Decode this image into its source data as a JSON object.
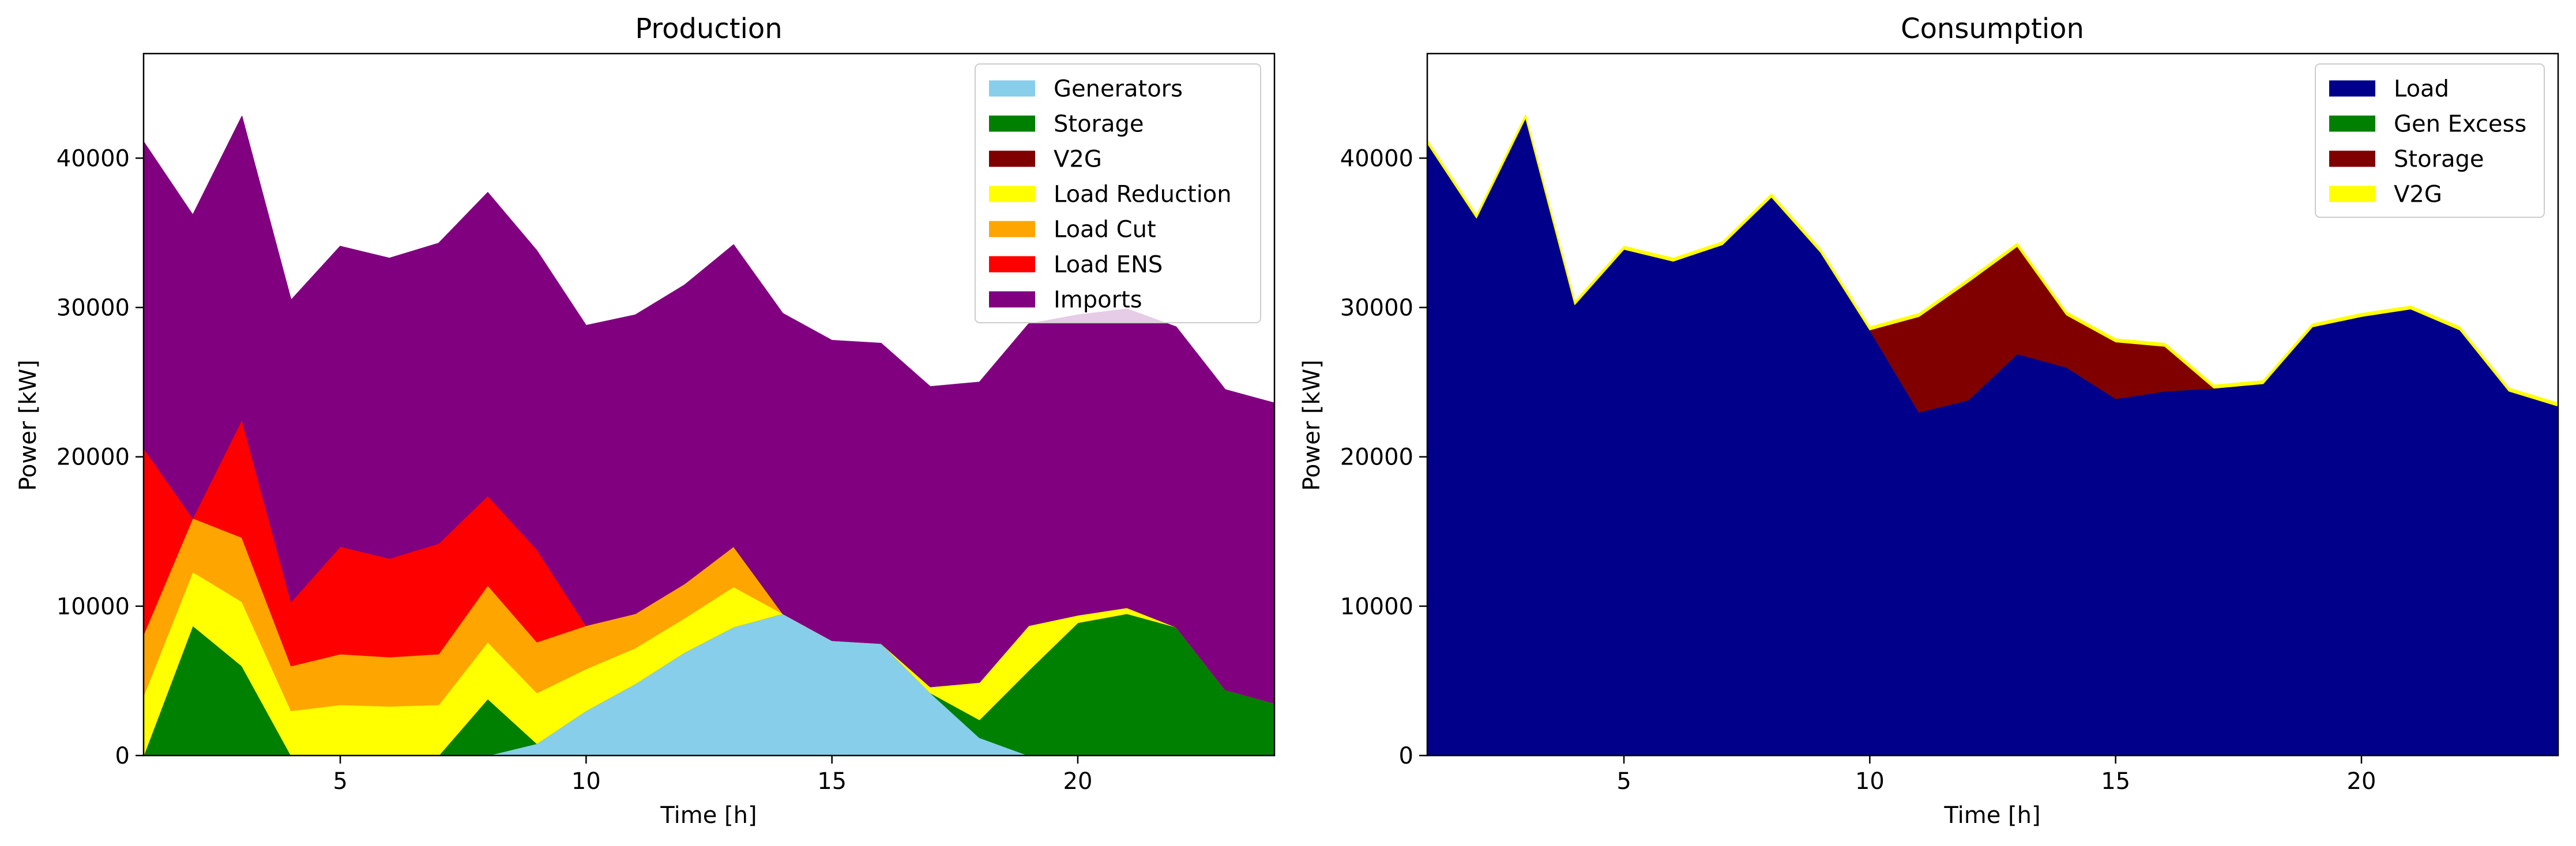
{
  "figure": {
    "charts": [
      "Production",
      "Consumption"
    ]
  },
  "chart_data": [
    {
      "type": "area",
      "stacked": true,
      "title": "Production",
      "xlabel": "Time [h]",
      "ylabel": "Power [kW]",
      "xlim": [
        1,
        24
      ],
      "ylim": [
        0,
        47000
      ],
      "xticks": [
        5,
        10,
        15,
        20
      ],
      "yticks": [
        0,
        10000,
        20000,
        30000,
        40000
      ],
      "grid": false,
      "legend_position": "top-right",
      "x": [
        1,
        2,
        3,
        4,
        5,
        6,
        7,
        8,
        9,
        10,
        11,
        12,
        13,
        14,
        15,
        16,
        17,
        18,
        19,
        20,
        21,
        22,
        23,
        24
      ],
      "series": [
        {
          "name": "Generators",
          "color": "#87ceeb",
          "values": [
            0,
            0,
            0,
            0,
            0,
            0,
            0,
            0,
            800,
            3000,
            4800,
            6900,
            8600,
            9500,
            7700,
            7500,
            4200,
            1200,
            0,
            0,
            0,
            0,
            0,
            0
          ]
        },
        {
          "name": "Storage",
          "color": "#008000",
          "values": [
            0,
            8700,
            6000,
            0,
            0,
            0,
            0,
            3800,
            0,
            0,
            0,
            0,
            0,
            0,
            0,
            0,
            0,
            1200,
            5700,
            8900,
            9500,
            8600,
            4400,
            3500
          ]
        },
        {
          "name": "V2G",
          "color": "#800000",
          "values": [
            0,
            0,
            0,
            0,
            0,
            0,
            0,
            0,
            0,
            0,
            0,
            0,
            0,
            0,
            0,
            0,
            0,
            0,
            0,
            0,
            0,
            0,
            0,
            0
          ]
        },
        {
          "name": "Load Reduction",
          "color": "#ffff00",
          "values": [
            4000,
            3600,
            4300,
            3000,
            3400,
            3300,
            3400,
            3800,
            3400,
            2800,
            2400,
            2300,
            2700,
            0,
            0,
            0,
            400,
            2500,
            3000,
            500,
            400,
            0,
            0,
            0
          ]
        },
        {
          "name": "Load Cut",
          "color": "#ffa500",
          "values": [
            4100,
            3600,
            4300,
            3000,
            3400,
            3300,
            3400,
            3800,
            3400,
            2900,
            2300,
            2300,
            2700,
            0,
            0,
            0,
            0,
            0,
            0,
            0,
            0,
            0,
            0,
            0
          ]
        },
        {
          "name": "Load ENS",
          "color": "#ff0000",
          "values": [
            12500,
            0,
            7900,
            4300,
            7200,
            6600,
            7400,
            6000,
            6200,
            0,
            0,
            0,
            0,
            0,
            0,
            0,
            0,
            0,
            0,
            0,
            0,
            0,
            0,
            0
          ]
        },
        {
          "name": "Imports",
          "color": "#800080",
          "values": [
            20500,
            20300,
            20300,
            20200,
            20100,
            20100,
            20100,
            20300,
            20000,
            20100,
            20000,
            20000,
            20200,
            20100,
            20100,
            20100,
            20100,
            20100,
            20200,
            20100,
            20000,
            20100,
            20100,
            20100
          ]
        }
      ]
    },
    {
      "type": "area",
      "stacked": true,
      "title": "Consumption",
      "xlabel": "Time [h]",
      "ylabel": "Power [kW]",
      "xlim": [
        1,
        24
      ],
      "ylim": [
        0,
        47000
      ],
      "xticks": [
        5,
        10,
        15,
        20
      ],
      "yticks": [
        0,
        10000,
        20000,
        30000,
        40000
      ],
      "grid": false,
      "legend_position": "top-right",
      "x": [
        1,
        2,
        3,
        4,
        5,
        6,
        7,
        8,
        9,
        10,
        11,
        12,
        13,
        14,
        15,
        16,
        17,
        18,
        19,
        20,
        21,
        22,
        23,
        24
      ],
      "series": [
        {
          "name": "Load",
          "color": "#00008b",
          "values": [
            41000,
            36000,
            42700,
            30200,
            33900,
            33100,
            34200,
            37400,
            33700,
            28500,
            23000,
            23800,
            26900,
            26000,
            23900,
            24400,
            24600,
            24900,
            28700,
            29400,
            29900,
            28500,
            24400,
            23400
          ]
        },
        {
          "name": "Gen Excess",
          "color": "#008000",
          "values": [
            0,
            0,
            0,
            0,
            0,
            0,
            0,
            0,
            0,
            0,
            0,
            0,
            0,
            0,
            0,
            0,
            0,
            0,
            0,
            0,
            0,
            0,
            0,
            0
          ]
        },
        {
          "name": "Storage",
          "color": "#800000",
          "values": [
            0,
            0,
            0,
            0,
            0,
            0,
            0,
            0,
            0,
            0,
            6400,
            7900,
            7200,
            3500,
            3800,
            3000,
            0,
            0,
            0,
            0,
            0,
            0,
            0,
            0
          ]
        },
        {
          "name": "V2G",
          "color": "#ffff00",
          "values": [
            200,
            200,
            200,
            200,
            200,
            200,
            200,
            200,
            200,
            200,
            200,
            200,
            200,
            200,
            200,
            200,
            200,
            200,
            200,
            200,
            200,
            200,
            200,
            200
          ]
        }
      ]
    }
  ]
}
